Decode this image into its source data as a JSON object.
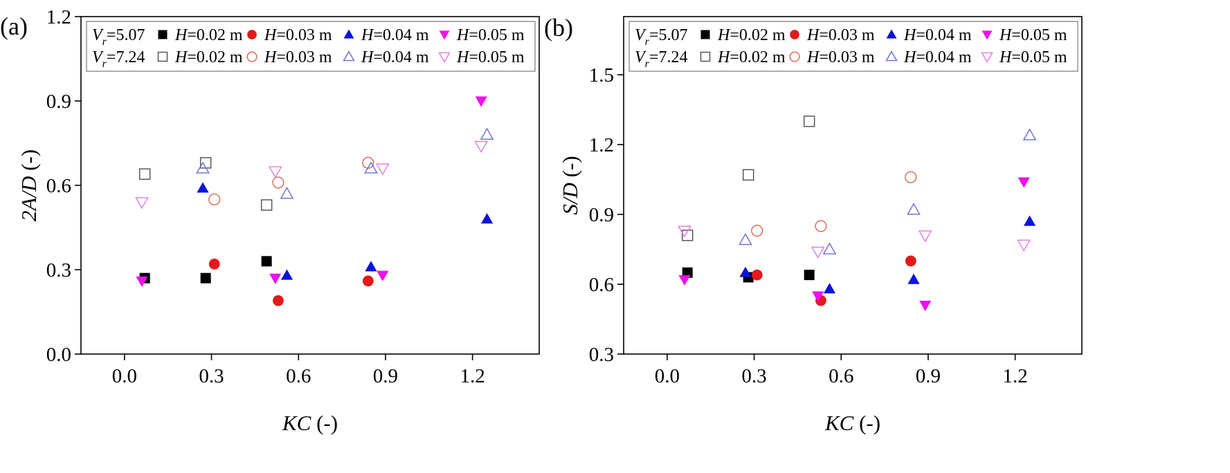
{
  "charts": [
    {
      "panel_label": "(a)",
      "ylabel_italic": "2A/D",
      "ylabel_suffix": " (-)",
      "xlabel_italic": "KC",
      "xlabel_suffix": " (-)",
      "xlim": [
        -0.15,
        1.43
      ],
      "ylim": [
        0.0,
        1.2
      ],
      "xticks": [
        "0.0",
        "0.3",
        "0.6",
        "0.9",
        "1.2"
      ],
      "xtick_values": [
        0.0,
        0.3,
        0.6,
        0.9,
        1.2
      ],
      "yticks": [
        "0.0",
        "0.3",
        "0.6",
        "0.9",
        "1.2"
      ],
      "ytick_values": [
        0.0,
        0.3,
        0.6,
        0.9,
        1.2
      ]
    },
    {
      "panel_label": "(b)",
      "ylabel_italic": "S/D",
      "ylabel_suffix": " (-)",
      "xlabel_italic": "KC",
      "xlabel_suffix": " (-)",
      "xlim": [
        -0.15,
        1.43
      ],
      "ylim": [
        0.3,
        1.75
      ],
      "xticks": [
        "0.0",
        "0.3",
        "0.6",
        "0.9",
        "1.2"
      ],
      "xtick_values": [
        0.0,
        0.3,
        0.6,
        0.9,
        1.2
      ],
      "yticks": [
        "0.3",
        "0.6",
        "0.9",
        "1.2",
        "1.5"
      ],
      "ytick_values": [
        0.3,
        0.6,
        0.9,
        1.2,
        1.5
      ]
    }
  ],
  "legend": {
    "rows": [
      {
        "vr_label": "=5.07",
        "entries": [
          {
            "label": "=0.02 m",
            "marker": "square",
            "filled": true,
            "color": "#000000"
          },
          {
            "label": "=0.03 m",
            "marker": "circle",
            "filled": true,
            "color": "#e31a1c"
          },
          {
            "label": "=0.04 m",
            "marker": "triangle-up",
            "filled": true,
            "color": "#0a14d8"
          },
          {
            "label": "=0.05 m",
            "marker": "triangle-down",
            "filled": true,
            "color": "#ee10ee"
          }
        ]
      },
      {
        "vr_label": "=7.24",
        "entries": [
          {
            "label": "=0.02 m",
            "marker": "square",
            "filled": false,
            "color": "#4d4d4d"
          },
          {
            "label": "=0.03 m",
            "marker": "circle",
            "filled": false,
            "color": "#d9654f"
          },
          {
            "label": "=0.04 m",
            "marker": "triangle-up",
            "filled": false,
            "color": "#6a6ad2"
          },
          {
            "label": "=0.05 m",
            "marker": "triangle-down",
            "filled": false,
            "color": "#e27ae2"
          }
        ]
      }
    ],
    "vr_symbol": "V",
    "vr_sub": "r",
    "h_symbol": "H"
  },
  "chart_data": [
    {
      "type": "scatter",
      "panel": "(a)",
      "xlabel": "KC (-)",
      "ylabel": "2A/D (-)",
      "xlim": [
        -0.15,
        1.43
      ],
      "ylim": [
        0.0,
        1.2
      ],
      "grid": false,
      "legend_position": "top",
      "series": [
        {
          "name": "Vr=5.07 H=0.02 m",
          "marker": "square",
          "filled": true,
          "color": "#000000",
          "points": [
            [
              0.07,
              0.27
            ],
            [
              0.28,
              0.27
            ],
            [
              0.49,
              0.33
            ]
          ]
        },
        {
          "name": "Vr=5.07 H=0.03 m",
          "marker": "circle",
          "filled": true,
          "color": "#e31a1c",
          "points": [
            [
              0.31,
              0.32
            ],
            [
              0.53,
              0.19
            ],
            [
              0.84,
              0.26
            ]
          ]
        },
        {
          "name": "Vr=5.07 H=0.04 m",
          "marker": "triangle-up",
          "filled": true,
          "color": "#0a14d8",
          "points": [
            [
              0.27,
              0.59
            ],
            [
              0.56,
              0.28
            ],
            [
              0.85,
              0.31
            ],
            [
              1.25,
              0.48
            ]
          ]
        },
        {
          "name": "Vr=5.07 H=0.05 m",
          "marker": "triangle-down",
          "filled": true,
          "color": "#ee10ee",
          "points": [
            [
              0.06,
              0.26
            ],
            [
              0.52,
              0.27
            ],
            [
              0.89,
              0.28
            ],
            [
              1.23,
              0.9
            ]
          ]
        },
        {
          "name": "Vr=7.24 H=0.02 m",
          "marker": "square",
          "filled": false,
          "color": "#4d4d4d",
          "points": [
            [
              0.07,
              0.64
            ],
            [
              0.28,
              0.68
            ],
            [
              0.49,
              0.53
            ]
          ]
        },
        {
          "name": "Vr=7.24 H=0.03 m",
          "marker": "circle",
          "filled": false,
          "color": "#d9654f",
          "points": [
            [
              0.31,
              0.55
            ],
            [
              0.53,
              0.61
            ],
            [
              0.84,
              0.68
            ]
          ]
        },
        {
          "name": "Vr=7.24 H=0.04 m",
          "marker": "triangle-up",
          "filled": false,
          "color": "#6a6ad2",
          "points": [
            [
              0.27,
              0.66
            ],
            [
              0.56,
              0.57
            ],
            [
              0.85,
              0.66
            ],
            [
              1.25,
              0.78
            ]
          ]
        },
        {
          "name": "Vr=7.24 H=0.05 m",
          "marker": "triangle-down",
          "filled": false,
          "color": "#e27ae2",
          "points": [
            [
              0.06,
              0.54
            ],
            [
              0.52,
              0.65
            ],
            [
              0.89,
              0.66
            ],
            [
              1.23,
              0.74
            ]
          ]
        }
      ]
    },
    {
      "type": "scatter",
      "panel": "(b)",
      "xlabel": "KC (-)",
      "ylabel": "S/D (-)",
      "xlim": [
        -0.15,
        1.43
      ],
      "ylim": [
        0.3,
        1.75
      ],
      "grid": false,
      "legend_position": "top",
      "series": [
        {
          "name": "Vr=5.07 H=0.02 m",
          "marker": "square",
          "filled": true,
          "color": "#000000",
          "points": [
            [
              0.07,
              0.65
            ],
            [
              0.28,
              0.63
            ],
            [
              0.49,
              0.64
            ]
          ]
        },
        {
          "name": "Vr=5.07 H=0.03 m",
          "marker": "circle",
          "filled": true,
          "color": "#e31a1c",
          "points": [
            [
              0.31,
              0.64
            ],
            [
              0.53,
              0.53
            ],
            [
              0.84,
              0.7
            ]
          ]
        },
        {
          "name": "Vr=5.07 H=0.04 m",
          "marker": "triangle-up",
          "filled": true,
          "color": "#0a14d8",
          "points": [
            [
              0.27,
              0.65
            ],
            [
              0.56,
              0.58
            ],
            [
              0.85,
              0.62
            ],
            [
              1.25,
              0.87
            ]
          ]
        },
        {
          "name": "Vr=5.07 H=0.05 m",
          "marker": "triangle-down",
          "filled": true,
          "color": "#ee10ee",
          "points": [
            [
              0.06,
              0.62
            ],
            [
              0.52,
              0.55
            ],
            [
              0.89,
              0.51
            ],
            [
              1.23,
              1.04
            ]
          ]
        },
        {
          "name": "Vr=7.24 H=0.02 m",
          "marker": "square",
          "filled": false,
          "color": "#4d4d4d",
          "points": [
            [
              0.07,
              0.81
            ],
            [
              0.28,
              1.07
            ],
            [
              0.49,
              1.3
            ]
          ]
        },
        {
          "name": "Vr=7.24 H=0.03 m",
          "marker": "circle",
          "filled": false,
          "color": "#d9654f",
          "points": [
            [
              0.31,
              0.83
            ],
            [
              0.53,
              0.85
            ],
            [
              0.84,
              1.06
            ]
          ]
        },
        {
          "name": "Vr=7.24 H=0.04 m",
          "marker": "triangle-up",
          "filled": false,
          "color": "#6a6ad2",
          "points": [
            [
              0.27,
              0.79
            ],
            [
              0.56,
              0.75
            ],
            [
              0.85,
              0.92
            ],
            [
              1.25,
              1.24
            ]
          ]
        },
        {
          "name": "Vr=7.24 H=0.05 m",
          "marker": "triangle-down",
          "filled": false,
          "color": "#e27ae2",
          "points": [
            [
              0.06,
              0.83
            ],
            [
              0.52,
              0.74
            ],
            [
              0.89,
              0.81
            ],
            [
              1.23,
              0.77
            ]
          ]
        }
      ]
    }
  ]
}
